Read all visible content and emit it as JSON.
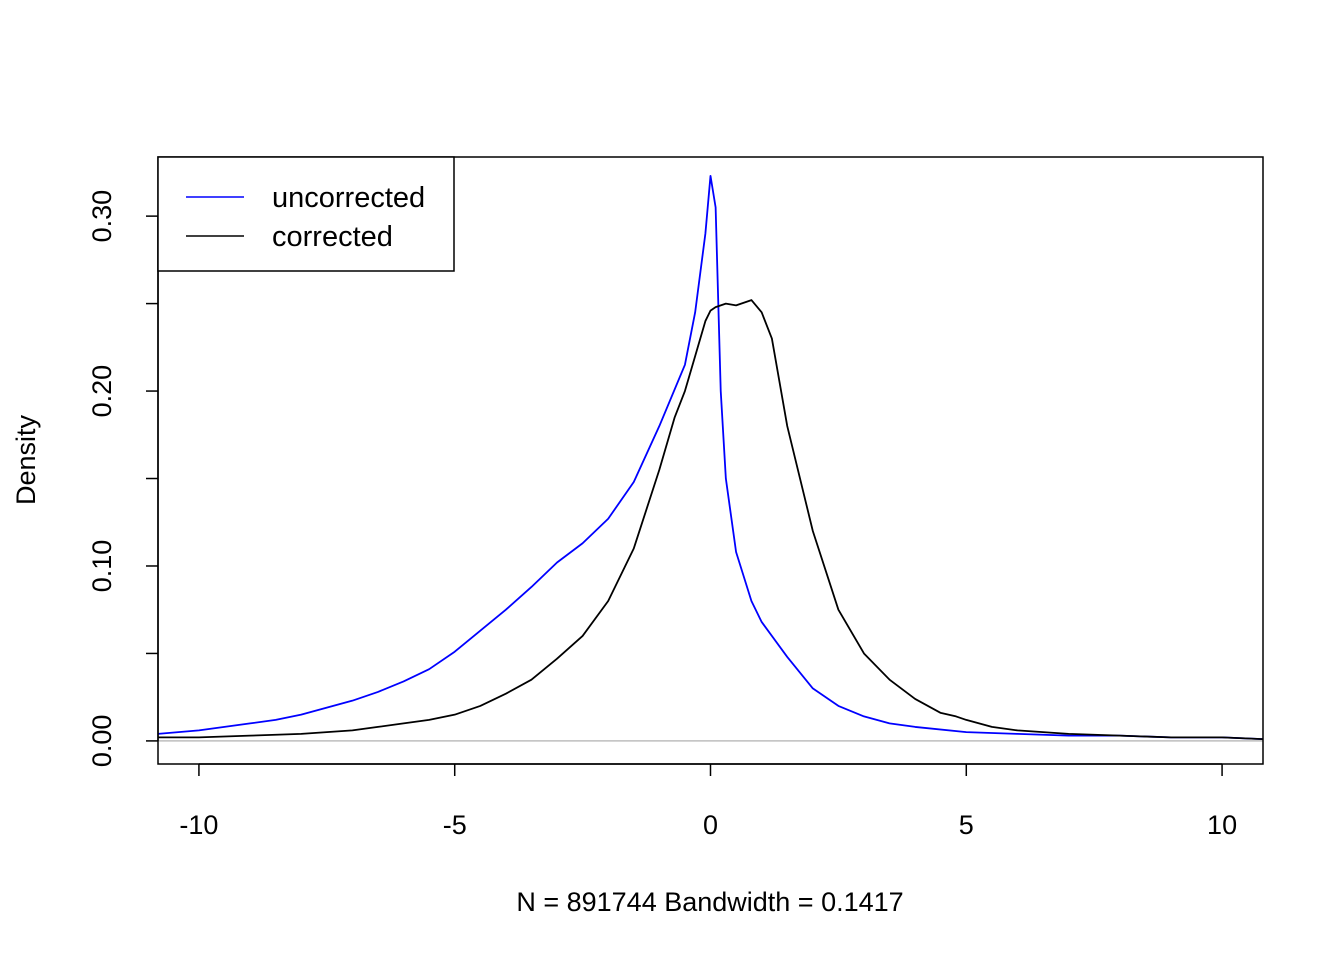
{
  "chart_data": {
    "type": "line",
    "title": "",
    "xlabel": "N = 891744   Bandwidth = 0.1417",
    "ylabel": "Density",
    "xlim": [
      -10.8,
      10.8
    ],
    "ylim": [
      -0.0132,
      0.3338
    ],
    "x_ticks": [
      -10,
      -5,
      0,
      5,
      10
    ],
    "x_tick_labels": [
      "-10",
      "-5",
      "0",
      "5",
      "10"
    ],
    "y_ticks": [
      0.0,
      0.05,
      0.1,
      0.15,
      0.2,
      0.25,
      0.3
    ],
    "y_tick_labels": [
      "0.00",
      "",
      "0.10",
      "",
      "0.20",
      "",
      "0.30"
    ],
    "zero_line": true,
    "grid": false,
    "legend": {
      "position": "top-left",
      "entries": [
        {
          "label": "uncorrected",
          "color": "#0000ff"
        },
        {
          "label": "corrected",
          "color": "#000000"
        }
      ]
    },
    "series": [
      {
        "name": "uncorrected",
        "color": "#0000ff",
        "x": [
          -10.8,
          -10,
          -9.5,
          -9,
          -8.5,
          -8,
          -7.5,
          -7,
          -6.5,
          -6,
          -5.5,
          -5,
          -4.5,
          -4,
          -3.5,
          -3,
          -2.5,
          -2,
          -1.5,
          -1,
          -0.5,
          -0.3,
          -0.1,
          0,
          0.1,
          0.2,
          0.3,
          0.5,
          0.8,
          1,
          1.5,
          2,
          2.5,
          3,
          3.5,
          4,
          5,
          6,
          7,
          8,
          9,
          10,
          10.8
        ],
        "y": [
          0.004,
          0.006,
          0.008,
          0.01,
          0.012,
          0.015,
          0.019,
          0.023,
          0.028,
          0.034,
          0.041,
          0.051,
          0.063,
          0.075,
          0.088,
          0.102,
          0.113,
          0.127,
          0.148,
          0.18,
          0.215,
          0.245,
          0.29,
          0.323,
          0.305,
          0.2,
          0.15,
          0.108,
          0.08,
          0.068,
          0.048,
          0.03,
          0.02,
          0.014,
          0.01,
          0.008,
          0.005,
          0.004,
          0.003,
          0.003,
          0.002,
          0.002,
          0.001
        ]
      },
      {
        "name": "corrected",
        "color": "#000000",
        "x": [
          -10.8,
          -10,
          -9,
          -8,
          -7,
          -6.5,
          -6,
          -5.5,
          -5,
          -4.5,
          -4,
          -3.5,
          -3,
          -2.5,
          -2,
          -1.5,
          -1,
          -0.7,
          -0.5,
          -0.3,
          -0.1,
          0,
          0.1,
          0.2,
          0.3,
          0.5,
          0.7,
          0.8,
          1,
          1.2,
          1.5,
          2,
          2.5,
          3,
          3.5,
          4,
          4.5,
          4.8,
          5,
          5.5,
          6,
          6.5,
          7,
          8,
          9,
          10,
          10.8
        ],
        "y": [
          0.002,
          0.002,
          0.003,
          0.004,
          0.006,
          0.008,
          0.01,
          0.012,
          0.015,
          0.02,
          0.027,
          0.035,
          0.047,
          0.06,
          0.08,
          0.11,
          0.155,
          0.185,
          0.2,
          0.22,
          0.24,
          0.246,
          0.248,
          0.249,
          0.25,
          0.249,
          0.251,
          0.252,
          0.245,
          0.23,
          0.18,
          0.12,
          0.075,
          0.05,
          0.035,
          0.024,
          0.016,
          0.014,
          0.012,
          0.008,
          0.006,
          0.005,
          0.004,
          0.003,
          0.002,
          0.002,
          0.001
        ]
      }
    ]
  }
}
